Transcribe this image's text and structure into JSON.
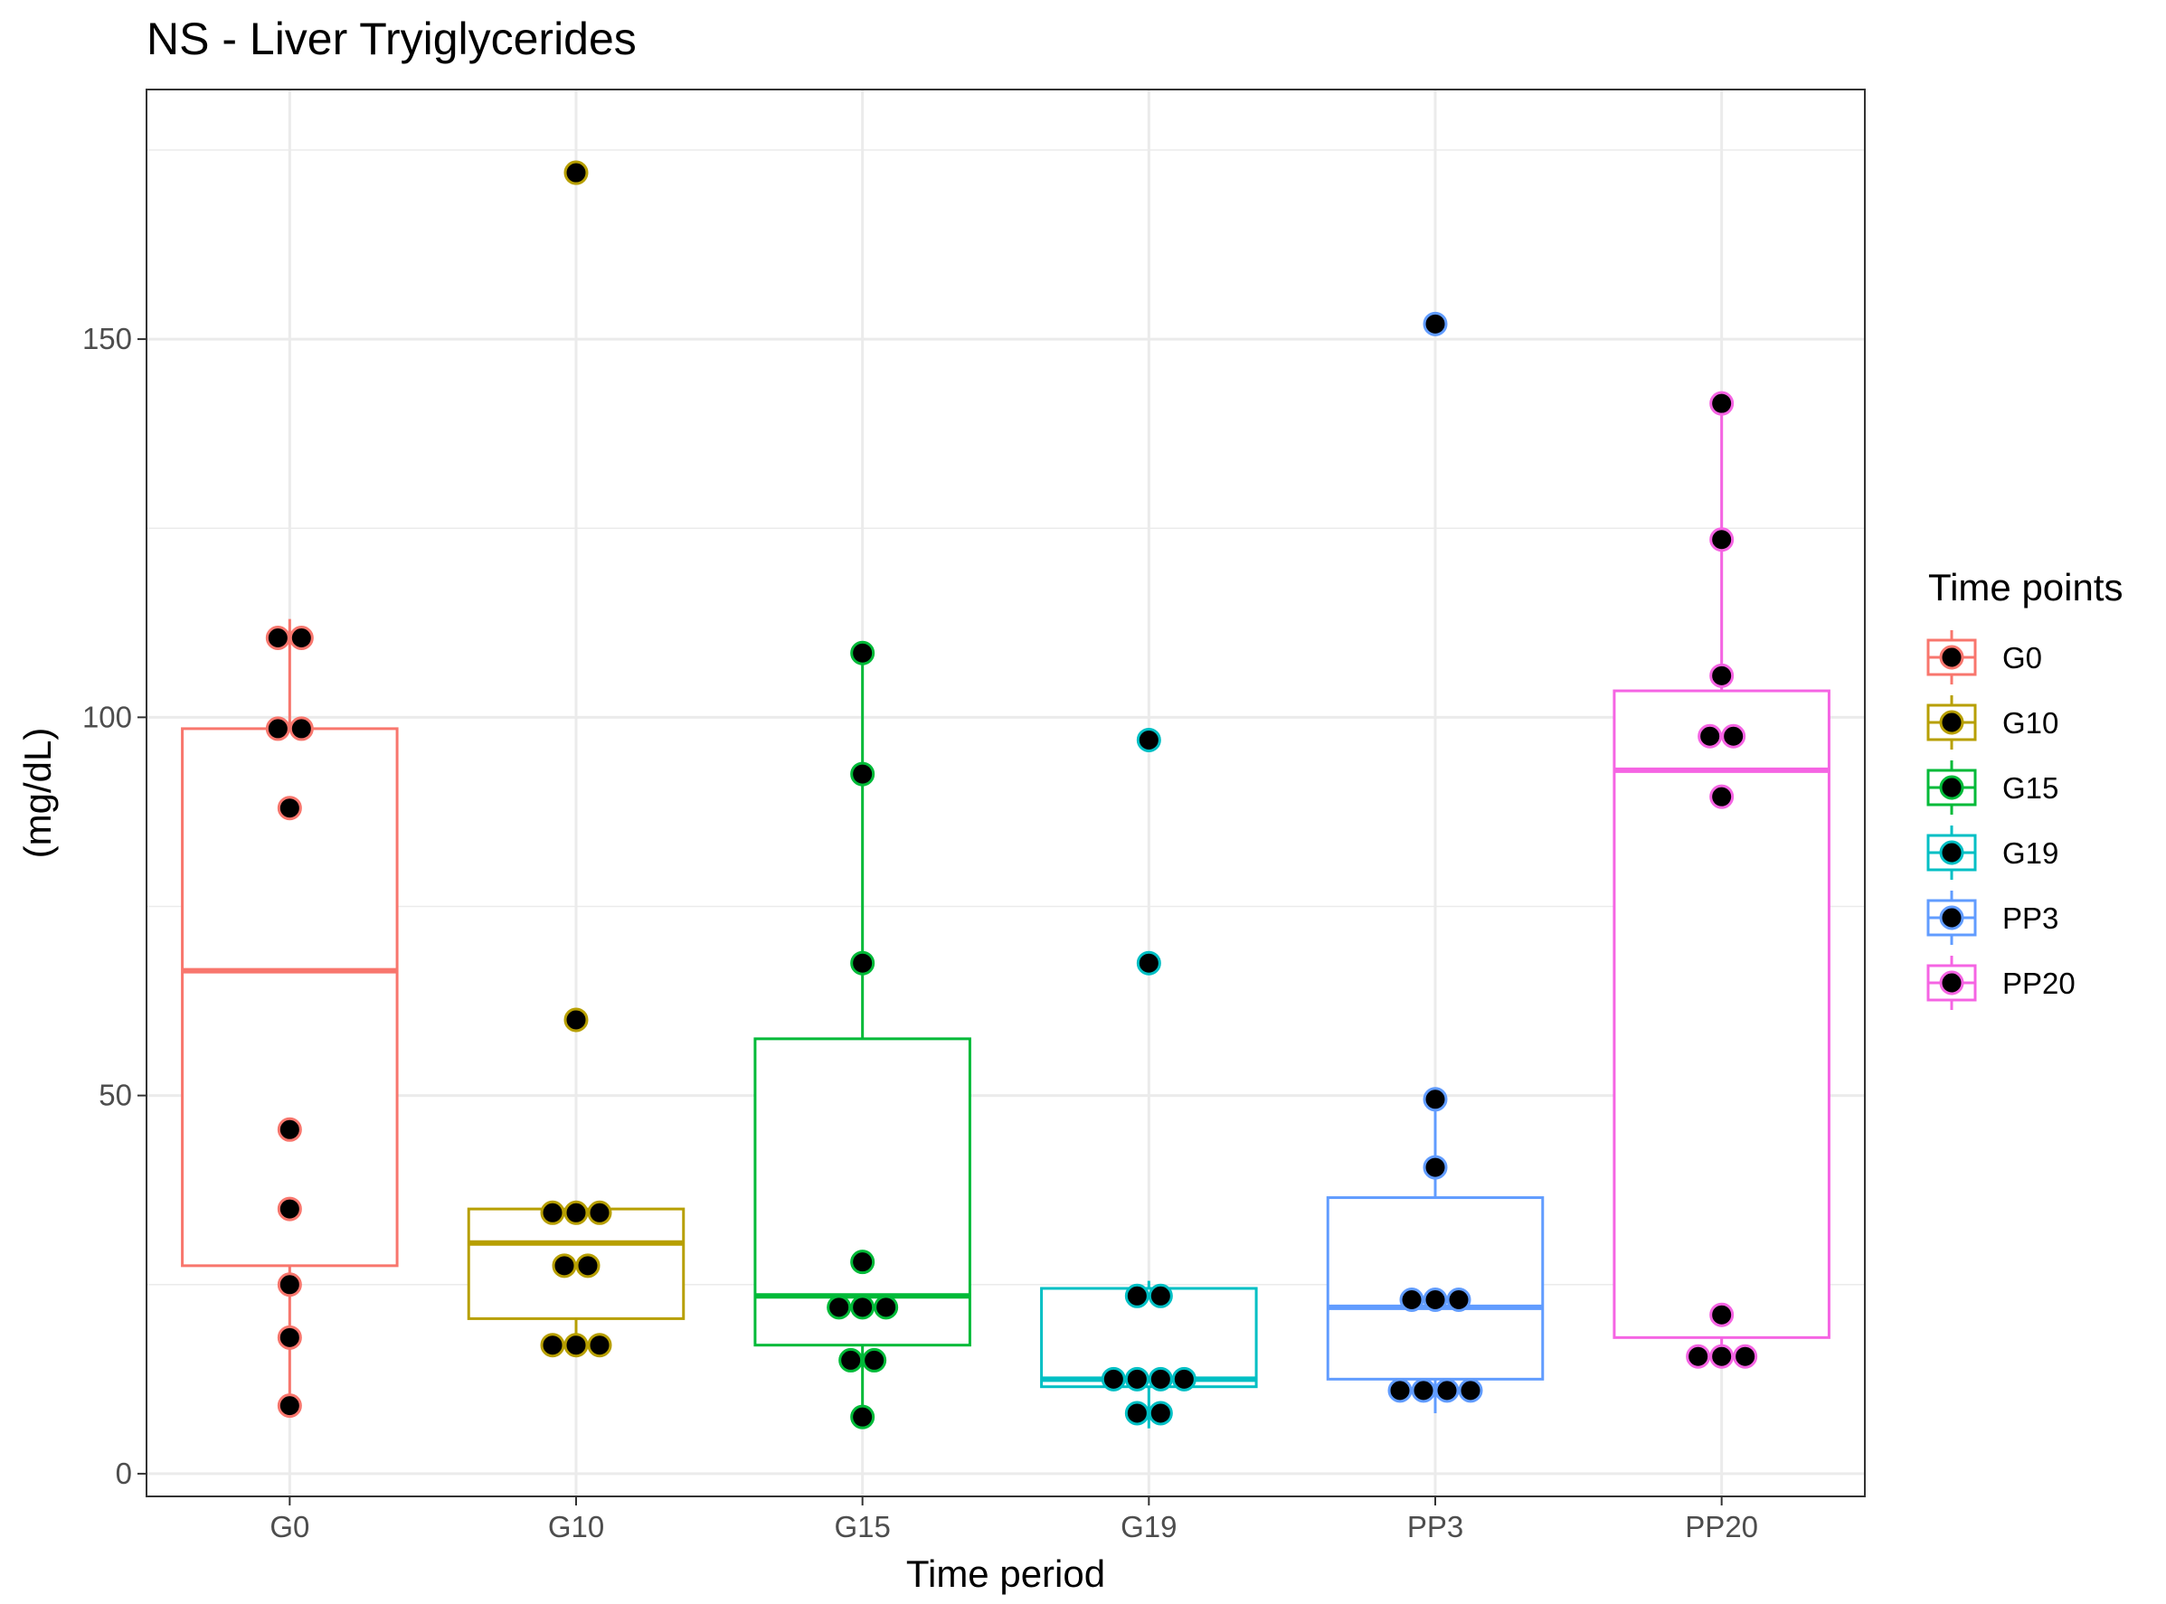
{
  "chart_data": {
    "type": "box",
    "title": "NS - Liver Tryiglycerides",
    "xlabel": "Time period",
    "ylabel": "(mg/dL)",
    "ylim": [
      -3,
      183
    ],
    "yticks": [
      0,
      50,
      100,
      150
    ],
    "grid": true,
    "legend": {
      "title": "Time points",
      "position": "right"
    },
    "categories": [
      "G0",
      "G10",
      "G15",
      "G19",
      "PP3",
      "PP20"
    ],
    "series": [
      {
        "name": "G0",
        "color": "#F8766D",
        "box": {
          "q1": 27.5,
          "median": 66.5,
          "q3": 98.5,
          "whisker_low": 9,
          "whisker_high": 113
        },
        "points": [
          110.5,
          110.5,
          98.5,
          98.5,
          88,
          45.5,
          35,
          25,
          18,
          9
        ]
      },
      {
        "name": "G10",
        "color": "#B79F00",
        "box": {
          "q1": 20.5,
          "median": 30.5,
          "q3": 35,
          "whisker_low": 17,
          "whisker_high": 35
        },
        "points": [
          172,
          60,
          34.5,
          34.5,
          34.5,
          27.5,
          27.5,
          17,
          17,
          17
        ]
      },
      {
        "name": "G15",
        "color": "#00BA38",
        "box": {
          "q1": 17,
          "median": 23.5,
          "q3": 57.5,
          "whisker_low": 7.5,
          "whisker_high": 108.5
        },
        "points": [
          108.5,
          92.5,
          67.5,
          28,
          22,
          22,
          22,
          15,
          15,
          7.5
        ]
      },
      {
        "name": "G19",
        "color": "#00BFC4",
        "box": {
          "q1": 11.5,
          "median": 12.5,
          "q3": 24.5,
          "whisker_low": 6,
          "whisker_high": 25.5
        },
        "points": [
          97,
          67.5,
          23.5,
          23.5,
          12.5,
          12.5,
          12.5,
          12.5,
          8,
          8
        ]
      },
      {
        "name": "PP3",
        "color": "#619CFF",
        "box": {
          "q1": 12.5,
          "median": 22,
          "q3": 36.5,
          "whisker_low": 8,
          "whisker_high": 49.5
        },
        "points": [
          152,
          49.5,
          40.5,
          23,
          23,
          23,
          11,
          11,
          11,
          11
        ]
      },
      {
        "name": "PP20",
        "color": "#F564E3",
        "box": {
          "q1": 18,
          "median": 93,
          "q3": 103.5,
          "whisker_low": 15.5,
          "whisker_high": 141.5
        },
        "points": [
          141.5,
          123.5,
          105.5,
          97.5,
          97.5,
          89.5,
          21,
          15.5,
          15.5,
          15.5
        ]
      }
    ]
  }
}
